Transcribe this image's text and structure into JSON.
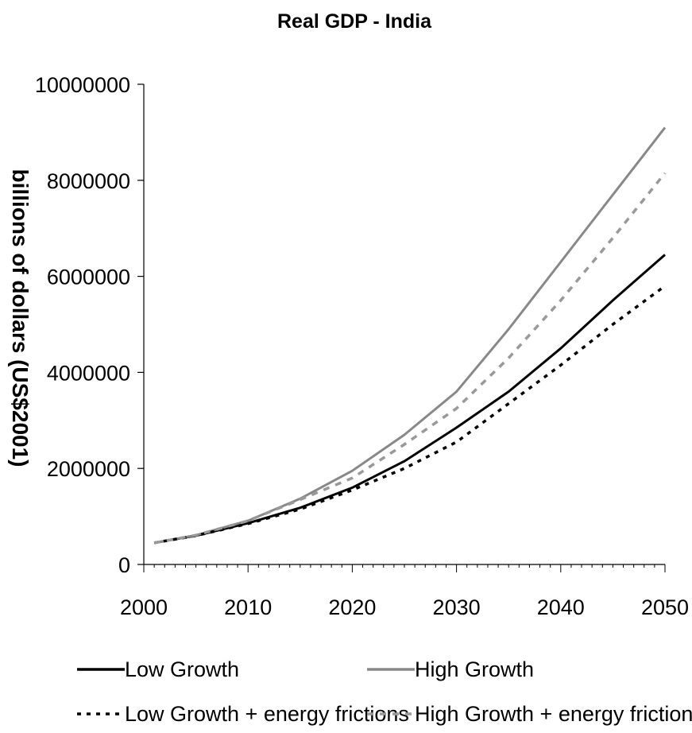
{
  "chart_data": {
    "type": "line",
    "title": "Real GDP - India",
    "xlabel": "",
    "ylabel": "billions of dollars (US$2001)",
    "xlim": [
      2000,
      2050
    ],
    "ylim": [
      0,
      10000000
    ],
    "x_ticks": [
      "2000",
      "2010",
      "2020",
      "2030",
      "2040",
      "2050"
    ],
    "y_ticks": [
      "0",
      "2000000",
      "4000000",
      "6000000",
      "8000000",
      "10000000"
    ],
    "grid": false,
    "legend_position": "bottom",
    "x": [
      2001,
      2005,
      2010,
      2015,
      2020,
      2025,
      2030,
      2035,
      2040,
      2045,
      2050
    ],
    "series": [
      {
        "name": "Low Growth",
        "color": "#000000",
        "style": "solid",
        "values": [
          450000,
          600000,
          860000,
          1180000,
          1600000,
          2150000,
          2850000,
          3600000,
          4500000,
          5500000,
          6450000
        ]
      },
      {
        "name": "High Growth",
        "color": "#888888",
        "style": "solid",
        "values": [
          450000,
          610000,
          910000,
          1370000,
          1950000,
          2700000,
          3600000,
          4900000,
          6300000,
          7700000,
          9100000
        ]
      },
      {
        "name": "Low Growth + energy frictions",
        "color": "#000000",
        "style": "dotted",
        "values": [
          450000,
          600000,
          850000,
          1150000,
          1550000,
          2000000,
          2550000,
          3350000,
          4150000,
          5000000,
          5800000
        ]
      },
      {
        "name": "High Growth + energy frictions",
        "color": "#999999",
        "style": "dashed",
        "values": [
          450000,
          610000,
          910000,
          1350000,
          1800000,
          2500000,
          3250000,
          4300000,
          5500000,
          6800000,
          8150000
        ]
      }
    ]
  }
}
